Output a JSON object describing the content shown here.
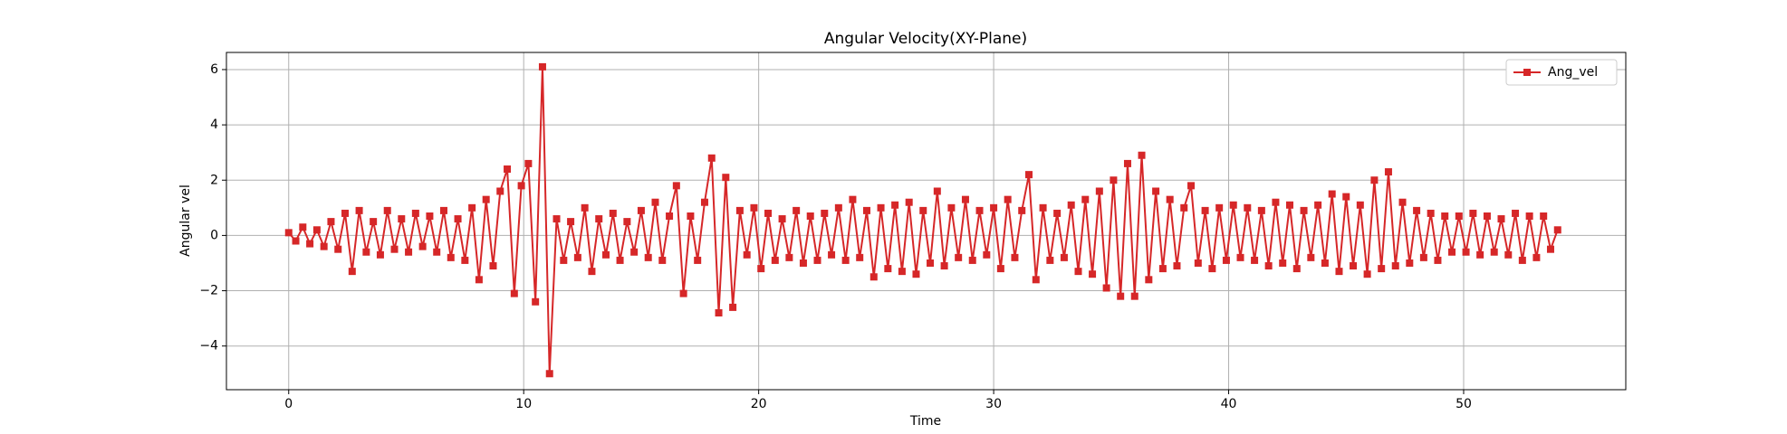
{
  "chart_data": {
    "type": "line",
    "title": "Angular Velocity(XY-Plane)",
    "x_label": "Time",
    "y_label": "Angular vel",
    "x": [
      0,
      0.3,
      0.6,
      0.9,
      1.2,
      1.5,
      1.8,
      2.1,
      2.4,
      2.7,
      3,
      3.3,
      3.6,
      3.9,
      4.2,
      4.5,
      4.8,
      5.1,
      5.4,
      5.7,
      6,
      6.3,
      6.6,
      6.9,
      7.2,
      7.5,
      7.8,
      8.1,
      8.4,
      8.7,
      9,
      9.3,
      9.6,
      9.9,
      10.2,
      10.5,
      10.8,
      11.1,
      11.4,
      11.7,
      12,
      12.3,
      12.6,
      12.9,
      13.2,
      13.5,
      13.8,
      14.1,
      14.4,
      14.7,
      15,
      15.3,
      15.6,
      15.9,
      16.2,
      16.5,
      16.8,
      17.1,
      17.4,
      17.7,
      18,
      18.3,
      18.6,
      18.9,
      19.2,
      19.5,
      19.8,
      20.1,
      20.4,
      20.7,
      21,
      21.3,
      21.6,
      21.9,
      22.2,
      22.5,
      22.8,
      23.1,
      23.4,
      23.7,
      24,
      24.3,
      24.6,
      24.9,
      25.2,
      25.5,
      25.8,
      26.1,
      26.4,
      26.7,
      27,
      27.3,
      27.6,
      27.9,
      28.2,
      28.5,
      28.8,
      29.1,
      29.4,
      29.7,
      30,
      30.3,
      30.6,
      30.9,
      31.2,
      31.5,
      31.8,
      32.1,
      32.4,
      32.7,
      33,
      33.3,
      33.6,
      33.9,
      34.2,
      34.5,
      34.8,
      35.1,
      35.4,
      35.7,
      36,
      36.3,
      36.6,
      36.9,
      37.2,
      37.5,
      37.8,
      38.1,
      38.4,
      38.7,
      39,
      39.3,
      39.6,
      39.9,
      40.2,
      40.5,
      40.8,
      41.1,
      41.4,
      41.7,
      42,
      42.3,
      42.6,
      42.9,
      43.2,
      43.5,
      43.8,
      44.1,
      44.4,
      44.7,
      45,
      45.3,
      45.6,
      45.9,
      46.2,
      46.5,
      46.8,
      47.1,
      47.4,
      47.7,
      48,
      48.3,
      48.6,
      48.9,
      49.2,
      49.5,
      49.8,
      50.1,
      50.4,
      50.7,
      51,
      51.3,
      51.6,
      51.9,
      52.2,
      52.5,
      52.8,
      53.1,
      53.4,
      53.7,
      54
    ],
    "series": [
      {
        "name": "Ang_vel",
        "color": "#d62728",
        "marker": "square",
        "values": [
          0.1,
          -0.2,
          0.3,
          -0.3,
          0.2,
          -0.4,
          0.5,
          -0.5,
          0.8,
          -1.3,
          0.9,
          -0.6,
          0.5,
          -0.7,
          0.9,
          -0.5,
          0.6,
          -0.6,
          0.8,
          -0.4,
          0.7,
          -0.6,
          0.9,
          -0.8,
          0.6,
          -0.9,
          1.0,
          -1.6,
          1.3,
          -1.1,
          1.6,
          2.4,
          -2.1,
          1.8,
          2.6,
          -2.4,
          6.1,
          -5.0,
          0.6,
          -0.9,
          0.5,
          -0.8,
          1.0,
          -1.3,
          0.6,
          -0.7,
          0.8,
          -0.9,
          0.5,
          -0.6,
          0.9,
          -0.8,
          1.2,
          -0.9,
          0.7,
          1.8,
          -2.1,
          0.7,
          -0.9,
          1.2,
          2.8,
          -2.8,
          2.1,
          -2.6,
          0.9,
          -0.7,
          1.0,
          -1.2,
          0.8,
          -0.9,
          0.6,
          -0.8,
          0.9,
          -1.0,
          0.7,
          -0.9,
          0.8,
          -0.7,
          1.0,
          -0.9,
          1.3,
          -0.8,
          0.9,
          -1.5,
          1.0,
          -1.2,
          1.1,
          -1.3,
          1.2,
          -1.4,
          0.9,
          -1.0,
          1.6,
          -1.1,
          1.0,
          -0.8,
          1.3,
          -0.9,
          0.9,
          -0.7,
          1.0,
          -1.2,
          1.3,
          -0.8,
          0.9,
          2.2,
          -1.6,
          1.0,
          -0.9,
          0.8,
          -0.8,
          1.1,
          -1.3,
          1.3,
          -1.4,
          1.6,
          -1.9,
          2.0,
          -2.2,
          2.6,
          -2.2,
          2.9,
          -1.6,
          1.6,
          -1.2,
          1.3,
          -1.1,
          1.0,
          1.8,
          -1.0,
          0.9,
          -1.2,
          1.0,
          -0.9,
          1.1,
          -0.8,
          1.0,
          -0.9,
          0.9,
          -1.1,
          1.2,
          -1.0,
          1.1,
          -1.2,
          0.9,
          -0.8,
          1.1,
          -1.0,
          1.5,
          -1.3,
          1.4,
          -1.1,
          1.1,
          -1.4,
          2.0,
          -1.2,
          2.3,
          -1.1,
          1.2,
          -1.0,
          0.9,
          -0.8,
          0.8,
          -0.9,
          0.7,
          -0.6,
          0.7,
          -0.6,
          0.8,
          -0.7,
          0.7,
          -0.6,
          0.6,
          -0.7,
          0.8,
          -0.9,
          0.7,
          -0.8,
          0.7,
          -0.5,
          0.2
        ]
      }
    ],
    "xlim": [
      -2.65,
      56.9
    ],
    "ylim": [
      -5.58,
      6.62
    ],
    "xticks": [
      0,
      10,
      20,
      30,
      40,
      50
    ],
    "yticks": [
      {
        "value": -4,
        "label": "−4"
      },
      {
        "value": -2,
        "label": "−2"
      },
      0,
      2,
      4,
      6
    ],
    "grid": true,
    "legend": "upper right"
  }
}
